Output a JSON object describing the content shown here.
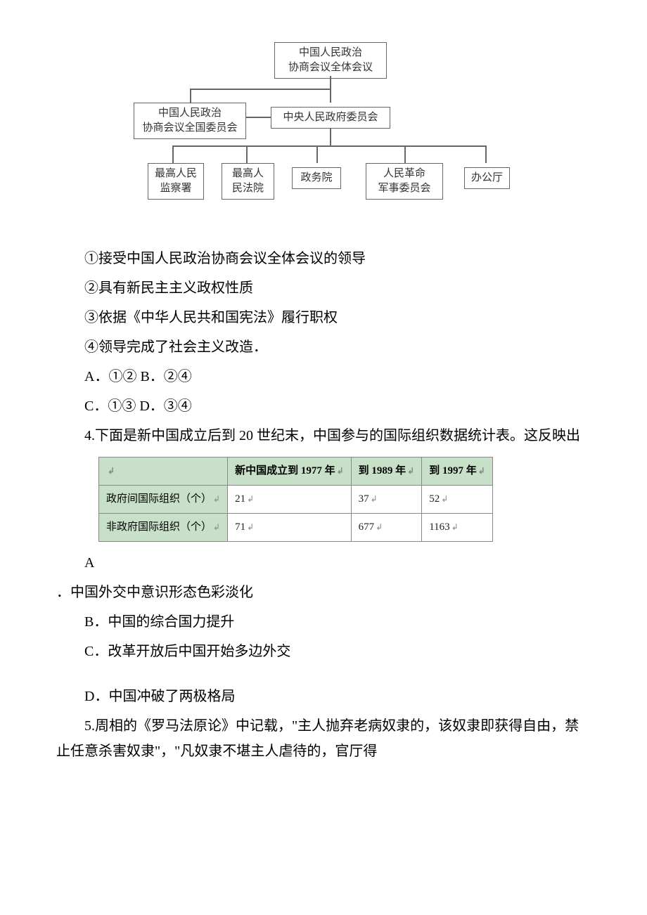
{
  "org": {
    "top": "中国人民政治\n协商会议全体会议",
    "leftCommittee": "中国人民政治\n协商会议全国委员会",
    "centerGov": "中央人民政府委员会",
    "bottom": [
      "最高人民\n监察署",
      "最高人\n民法院",
      "政务院",
      "人民革命\n军事委员会",
      "办公厅"
    ]
  },
  "statements": {
    "s1": "①接受中国人民政治协商会议全体会议的领导",
    "s2": "②具有新民主主义政权性质",
    "s3": "③依据《中华人民共和国宪法》履行职权",
    "s4": "④领导完成了社会主义改造．"
  },
  "options3": {
    "line1": "A．①② B．②④",
    "line2": "C．①③ D．③④"
  },
  "q4": {
    "stem": "4.下面是新中国成立后到 20 世纪末，中国参与的国际组织数据统计表。这反映出",
    "table": {
      "type": "table",
      "header_bg": "#c8e0c8",
      "row_bg": "#c8e0c8",
      "border_color": "#888888",
      "font_size": 15,
      "columns": [
        "",
        "新中国成立到 1977 年",
        "到 1989 年",
        "到 1997 年"
      ],
      "rows": [
        [
          "政府间国际组织（个）",
          "21",
          "37",
          "52"
        ],
        [
          "非政府国际组织（个）",
          "71",
          "677",
          "1163"
        ]
      ]
    },
    "optA1": "A",
    "optA2": "．中国外交中意识形态色彩淡化",
    "optB": "B．中国的综合国力提升",
    "optC": "C．改革开放后中国开始多边外交",
    "optD": "D．中国冲破了两极格局"
  },
  "q5": {
    "stem": "5.周相的《罗马法原论》中记载，\"主人抛弃老病奴隶的，该奴隶即获得自由，禁止任意杀害奴隶\"，\"凡奴隶不堪主人虐待的，官厅得"
  },
  "colors": {
    "text": "#000000",
    "table_header_bg": "#c8e0c8",
    "border": "#888888",
    "org_border": "#666666"
  }
}
